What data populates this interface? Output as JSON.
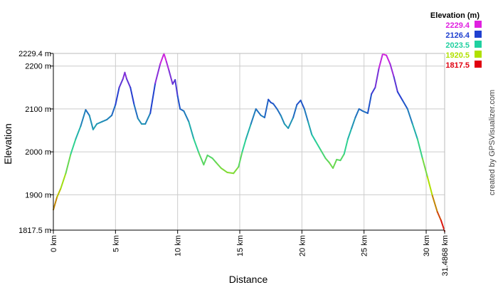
{
  "chart_data": {
    "type": "line",
    "title": "",
    "xlabel": "Distance",
    "ylabel": "Elevation",
    "x_unit": "km",
    "y_unit": "m",
    "xlim": [
      0,
      31.4868
    ],
    "ylim": [
      1817.5,
      2229.4
    ],
    "grid": true,
    "x_ticks": [
      {
        "value": 0,
        "label": "0 km"
      },
      {
        "value": 5,
        "label": "5 km"
      },
      {
        "value": 10,
        "label": "10 km"
      },
      {
        "value": 15,
        "label": "15 km"
      },
      {
        "value": 20,
        "label": "20 km"
      },
      {
        "value": 25,
        "label": "25 km"
      },
      {
        "value": 30,
        "label": "30 km"
      },
      {
        "value": 31.4868,
        "label": "31.4868 km"
      }
    ],
    "y_ticks": [
      {
        "value": 1817.5,
        "label": "1817.5 m"
      },
      {
        "value": 1900,
        "label": "1900 m"
      },
      {
        "value": 2000,
        "label": "2000 m"
      },
      {
        "value": 2100,
        "label": "2100 m"
      },
      {
        "value": 2200,
        "label": "2200 m"
      },
      {
        "value": 2229.4,
        "label": "2229.4 m"
      }
    ],
    "legend": {
      "title": "Elevation (m)",
      "placement": "top-right",
      "entries": [
        {
          "label": "2229.4",
          "value": 2229.4,
          "color": "#e020e0"
        },
        {
          "label": "2126.4",
          "value": 2126.4,
          "color": "#2040d0"
        },
        {
          "label": "2023.5",
          "value": 2023.5,
          "color": "#20d0a0"
        },
        {
          "label": "1920.5",
          "value": 1920.5,
          "color": "#b0e000"
        },
        {
          "label": "1817.5",
          "value": 1817.5,
          "color": "#e00010"
        }
      ]
    },
    "series": [
      {
        "x": [
          0,
          0.3,
          0.6,
          1.0,
          1.4,
          1.8,
          2.2,
          2.6,
          2.9,
          3.2,
          3.5,
          3.9,
          4.3,
          4.7,
          5.0,
          5.3,
          5.6,
          5.75,
          5.9,
          6.2,
          6.5,
          6.8,
          7.1,
          7.4,
          7.8,
          8.2,
          8.6,
          8.9,
          9.1,
          9.3,
          9.6,
          9.8,
          10.0,
          10.2,
          10.5,
          10.9,
          11.3,
          11.7,
          12.1,
          12.4,
          12.8,
          13.1,
          13.5,
          14.0,
          14.5,
          14.9,
          15.2,
          15.5,
          15.9,
          16.3,
          16.7,
          17.0,
          17.3,
          17.5,
          17.7,
          18.0,
          18.3,
          18.6,
          18.9,
          19.3,
          19.6,
          19.9,
          20.2,
          20.5,
          20.8,
          21.1,
          21.5,
          21.9,
          22.2,
          22.5,
          22.8,
          23.1,
          23.4,
          23.7,
          24.0,
          24.3,
          24.6,
          24.9,
          25.3,
          25.6,
          25.9,
          26.2,
          26.5,
          26.8,
          27.1,
          27.4,
          27.7,
          28.1,
          28.5,
          28.9,
          29.3,
          29.7,
          30.1,
          30.5,
          30.9,
          31.2,
          31.4868
        ],
        "y": [
          1865,
          1895,
          1915,
          1950,
          1995,
          2030,
          2060,
          2098,
          2085,
          2052,
          2065,
          2070,
          2075,
          2085,
          2110,
          2150,
          2170,
          2185,
          2170,
          2150,
          2110,
          2078,
          2065,
          2065,
          2090,
          2160,
          2205,
          2229,
          2210,
          2190,
          2158,
          2168,
          2130,
          2100,
          2095,
          2070,
          2030,
          1998,
          1970,
          1992,
          1985,
          1975,
          1962,
          1952,
          1950,
          1965,
          2000,
          2030,
          2065,
          2100,
          2085,
          2080,
          2122,
          2115,
          2112,
          2100,
          2085,
          2065,
          2055,
          2080,
          2110,
          2120,
          2100,
          2070,
          2040,
          2025,
          2005,
          1985,
          1975,
          1962,
          1982,
          1980,
          1995,
          2030,
          2055,
          2080,
          2100,
          2095,
          2090,
          2135,
          2150,
          2195,
          2228,
          2225,
          2205,
          2175,
          2140,
          2120,
          2100,
          2065,
          2030,
          1985,
          1942,
          1898,
          1860,
          1840,
          1815
        ]
      }
    ]
  },
  "watermark": "created by GPSVisualizer.com"
}
